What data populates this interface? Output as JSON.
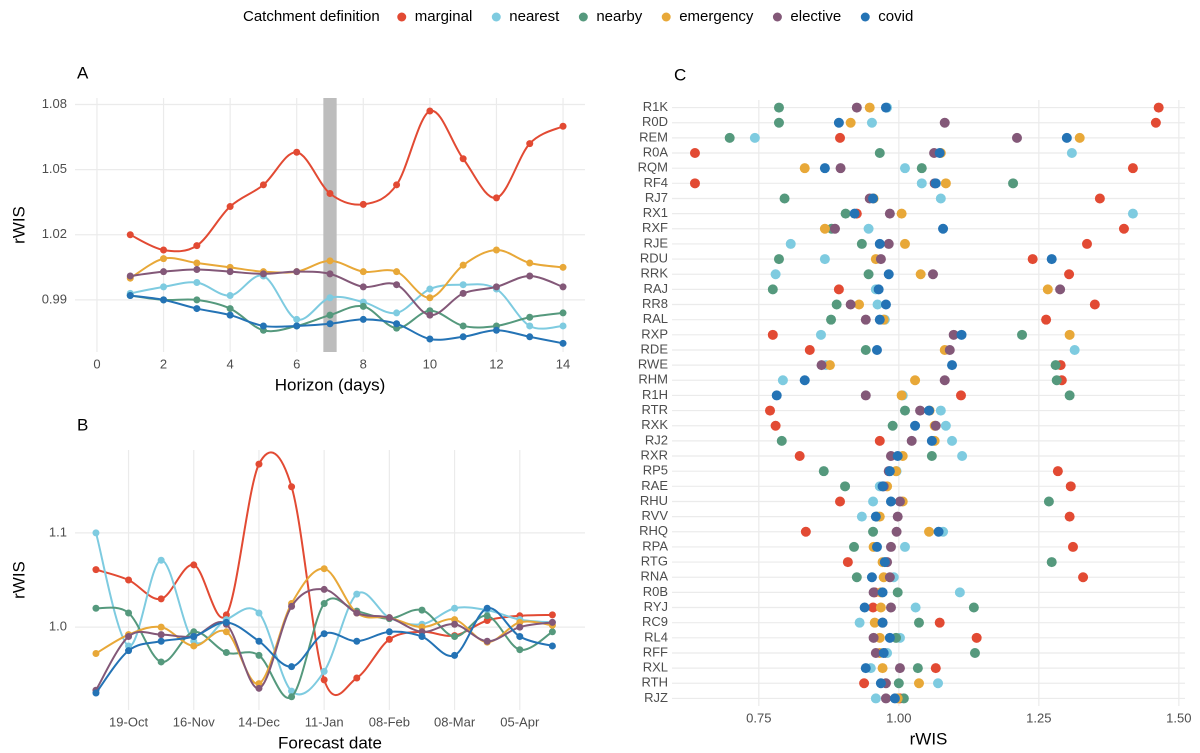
{
  "legend": {
    "title": "Catchment definition",
    "series": [
      {
        "name": "marginal",
        "color": "#e24a33"
      },
      {
        "name": "nearest",
        "color": "#7ecbe0"
      },
      {
        "name": "nearby",
        "color": "#55997d"
      },
      {
        "name": "emergency",
        "color": "#e8a838"
      },
      {
        "name": "elective",
        "color": "#835878"
      },
      {
        "name": "covid",
        "color": "#2473b5"
      }
    ]
  },
  "chart_data": [
    {
      "type": "line",
      "title": "A",
      "x_label": "Horizon (days)",
      "y_label": "rWIS",
      "x": [
        1,
        2,
        3,
        4,
        5,
        6,
        7,
        8,
        9,
        10,
        11,
        12,
        13,
        14
      ],
      "xlim": [
        -0.66,
        14.66
      ],
      "xticks": [
        0,
        2,
        4,
        6,
        8,
        10,
        12,
        14
      ],
      "ylim": [
        0.966,
        1.083
      ],
      "yticks": [
        0.99,
        1.02,
        1.05,
        1.08
      ],
      "highlight_x": [
        6.8,
        7.2
      ],
      "grid": true,
      "series": [
        {
          "values": [
            1.02,
            1.013,
            1.015,
            1.033,
            1.043,
            1.058,
            1.039,
            1.034,
            1.043,
            1.077,
            1.055,
            1.037,
            1.062,
            1.07
          ]
        },
        {
          "values": [
            0.993,
            0.996,
            0.998,
            0.992,
            1.001,
            0.981,
            0.991,
            0.989,
            0.984,
            0.995,
            0.997,
            0.995,
            0.978,
            0.978
          ]
        },
        {
          "values": [
            0.992,
            0.99,
            0.99,
            0.986,
            0.976,
            0.978,
            0.983,
            0.987,
            0.977,
            0.985,
            0.978,
            0.978,
            0.982,
            0.984
          ]
        },
        {
          "values": [
            1.0,
            1.009,
            1.007,
            1.005,
            1.003,
            1.003,
            1.008,
            1.003,
            1.003,
            0.991,
            1.006,
            1.013,
            1.007,
            1.005
          ]
        },
        {
          "values": [
            1.001,
            1.003,
            1.004,
            1.003,
            1.002,
            1.003,
            1.002,
            0.996,
            0.997,
            0.983,
            0.993,
            0.996,
            1.001,
            0.996
          ]
        },
        {
          "values": [
            0.992,
            0.99,
            0.986,
            0.983,
            0.978,
            0.978,
            0.979,
            0.981,
            0.979,
            0.972,
            0.973,
            0.976,
            0.973,
            0.97
          ]
        }
      ]
    },
    {
      "type": "line",
      "title": "B",
      "x_label": "Forecast date",
      "y_label": "rWIS",
      "x": [
        "05-Oct",
        "19-Oct",
        "02-Nov",
        "16-Nov",
        "30-Nov",
        "14-Dec",
        "28-Dec",
        "11-Jan",
        "25-Jan",
        "08-Feb",
        "22-Feb",
        "08-Mar",
        "22-Mar",
        "05-Apr",
        "19-Apr"
      ],
      "xlim": [
        "26-Sep",
        "03-May"
      ],
      "xticks": [
        "19-Oct",
        "16-Nov",
        "14-Dec",
        "11-Jan",
        "08-Feb",
        "08-Mar",
        "05-Apr"
      ],
      "ylim": [
        0.912,
        1.188
      ],
      "yticks": [
        {
          "value": 1,
          "label": "1.0"
        },
        {
          "value": 1.1,
          "label": "1.1"
        }
      ],
      "grid": true,
      "series": [
        {
          "values": [
            1.061,
            1.05,
            1.03,
            1.066,
            1.013,
            1.173,
            1.149,
            0.944,
            0.946,
            0.987,
            0.995,
            0.991,
            1.007,
            1.012,
            1.013
          ]
        },
        {
          "values": [
            1.1,
            0.98,
            1.071,
            0.985,
            1.008,
            1.015,
            0.932,
            0.953,
            1.035,
            1.01,
            1.003,
            1.02,
            1.018,
            1.008,
            1.005
          ]
        },
        {
          "values": [
            1.02,
            1.015,
            0.963,
            0.995,
            0.973,
            0.97,
            0.926,
            1.025,
            1.017,
            1.009,
            1.018,
            0.99,
            1.012,
            0.976,
            0.995
          ]
        },
        {
          "values": [
            0.972,
            0.992,
            1.0,
            0.98,
            0.995,
            0.94,
            1.025,
            1.062,
            1.015,
            1.01,
            1.0,
            1.008,
            0.984,
            1.005,
            1.002
          ]
        },
        {
          "values": [
            0.933,
            0.99,
            0.992,
            0.99,
            1.003,
            0.935,
            1.022,
            1.04,
            1.015,
            1.01,
            0.995,
            1.003,
            0.985,
            1.0,
            1.005
          ]
        },
        {
          "values": [
            0.93,
            0.975,
            0.985,
            0.99,
            1.005,
            0.985,
            0.958,
            0.993,
            0.985,
            0.995,
            0.99,
            0.97,
            1.02,
            0.99,
            0.98
          ]
        }
      ]
    },
    {
      "type": "dot",
      "title": "C",
      "x_label": "rWIS",
      "categories": [
        "R1K",
        "R0D",
        "REM",
        "R0A",
        "RQM",
        "RF4",
        "RJ7",
        "RX1",
        "RXF",
        "RJE",
        "RDU",
        "RRK",
        "RAJ",
        "RR8",
        "RAL",
        "RXP",
        "RDE",
        "RWE",
        "RHM",
        "R1H",
        "RTR",
        "RXK",
        "RJ2",
        "RXR",
        "RP5",
        "RAE",
        "RHU",
        "RVV",
        "RHQ",
        "RPA",
        "RTG",
        "RNA",
        "R0B",
        "RYJ",
        "RC9",
        "RL4",
        "RFF",
        "RXL",
        "RTH",
        "RJZ"
      ],
      "xlim": [
        0.595,
        1.511
      ],
      "xticks": [
        0.75,
        {
          "value": 1,
          "label": "1.00"
        },
        1.25,
        {
          "value": 1.5,
          "label": "1.50"
        }
      ],
      "grid": true,
      "series": [
        {
          "values": [
            1.464,
            1.459,
            0.895,
            0.636,
            1.418,
            0.636,
            1.359,
            0.925,
            1.402,
            1.336,
            1.239,
            1.304,
            0.893,
            1.35,
            1.263,
            0.775,
            0.841,
            1.289,
            1.291,
            1.111,
            0.77,
            0.78,
            0.966,
            0.823,
            1.284,
            1.307,
            0.895,
            1.305,
            0.834,
            1.311,
            0.909,
            1.329,
            0.957,
            0.954,
            1.073,
            1.139,
            0.977,
            1.066,
            0.938,
            1.002
          ]
        },
        {
          "values": [
            0.979,
            0.952,
            0.743,
            1.309,
            1.011,
            1.041,
            1.075,
            1.418,
            0.946,
            0.807,
            0.868,
            0.78,
            0.959,
            0.962,
            0.975,
            0.861,
            1.314,
            0.87,
            0.793,
            1.007,
            1.075,
            1.084,
            1.095,
            1.113,
            0.996,
            0.966,
            0.954,
            0.934,
            1.079,
            1.011,
            0.977,
            0.991,
            1.109,
            1.03,
            0.93,
            1.002,
            0.979,
            0.95,
            1.07,
            0.959
          ]
        },
        {
          "values": [
            0.786,
            0.786,
            0.698,
            0.966,
            1.041,
            1.204,
            0.796,
            0.905,
            0.88,
            0.934,
            0.786,
            0.946,
            0.775,
            0.889,
            0.879,
            1.22,
            0.941,
            1.28,
            1.282,
            1.305,
            1.011,
            0.989,
            0.791,
            1.059,
            0.866,
            0.904,
            1.268,
            0.961,
            0.954,
            0.92,
            1.273,
            0.925,
            0.998,
            1.134,
            1.036,
            0.995,
            1.136,
            1.034,
            1.0,
            1.009
          ]
        },
        {
          "values": [
            0.948,
            0.914,
            1.323,
            1.075,
            0.832,
            1.084,
            0.955,
            1.005,
            0.868,
            1.011,
            0.959,
            1.039,
            1.266,
            0.929,
            0.973,
            1.305,
            1.082,
            0.877,
            1.029,
            1.005,
            1.055,
            1.064,
            1.064,
            1.007,
            0.995,
            0.979,
            1.007,
            0.966,
            1.054,
            0.955,
            0.971,
            0.973,
            0.968,
            0.968,
            0.957,
            0.966,
            0.966,
            0.971,
            1.036,
            0.998
          ]
        },
        {
          "values": [
            0.925,
            1.082,
            1.211,
            1.063,
            0.896,
            1.064,
            0.948,
            0.984,
            0.886,
            0.982,
            0.968,
            1.061,
            1.288,
            0.914,
            0.941,
            1.098,
            1.091,
            0.862,
            1.082,
            0.941,
            1.038,
            1.066,
            1.023,
            0.986,
            0.982,
            0.973,
            1.002,
            0.998,
            0.996,
            0.986,
            0.979,
            0.984,
            0.955,
            0.986,
            0.971,
            0.955,
            0.959,
            1.002,
            0.977,
            0.977
          ]
        },
        {
          "values": [
            0.977,
            0.893,
            1.3,
            1.073,
            0.868,
            1.066,
            0.954,
            0.921,
            1.079,
            0.966,
            1.273,
            0.982,
            0.964,
            0.977,
            0.966,
            1.112,
            0.961,
            1.095,
            0.832,
            0.782,
            1.054,
            1.029,
            1.059,
            0.998,
            0.984,
            0.971,
            0.986,
            0.959,
            1.071,
            0.961,
            0.975,
            0.952,
            0.971,
            0.939,
            0.971,
            0.984,
            0.973,
            0.941,
            0.968,
            0.993
          ]
        }
      ]
    }
  ]
}
